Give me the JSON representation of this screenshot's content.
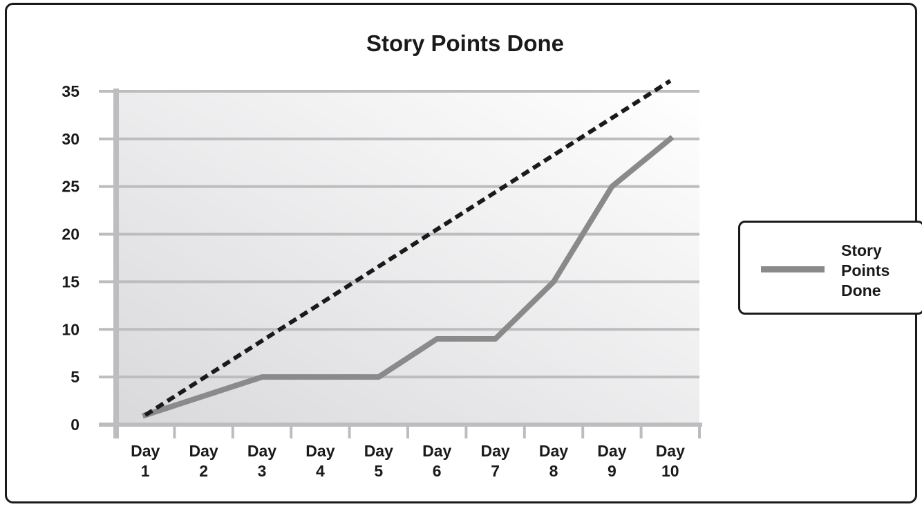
{
  "chart_data": {
    "type": "line",
    "title": "Story Points Done",
    "categories": [
      "Day 1",
      "Day 2",
      "Day 3",
      "Day 4",
      "Day 5",
      "Day 6",
      "Day 7",
      "Day 8",
      "Day 9",
      "Day 10"
    ],
    "category_lines": [
      [
        "Day",
        "1"
      ],
      [
        "Day",
        "2"
      ],
      [
        "Day",
        "3"
      ],
      [
        "Day",
        "4"
      ],
      [
        "Day",
        "5"
      ],
      [
        "Day",
        "6"
      ],
      [
        "Day",
        "7"
      ],
      [
        "Day",
        "8"
      ],
      [
        "Day",
        "9"
      ],
      [
        "Day",
        "10"
      ]
    ],
    "series": [
      {
        "name": "Story Points Done",
        "color": "#8a8a8a",
        "style": "solid",
        "values": [
          1,
          3,
          5,
          5,
          5,
          9,
          9,
          15,
          25,
          30
        ]
      },
      {
        "color": "#1a1a1a",
        "style": "dashed",
        "values": [
          1,
          4.9,
          8.8,
          12.7,
          16.6,
          20.5,
          24.4,
          28.3,
          32.2,
          36.1
        ]
      }
    ],
    "yticks": [
      0,
      5,
      10,
      15,
      20,
      25,
      30,
      35
    ],
    "ylim": [
      0,
      35
    ],
    "grid": true,
    "legend": {
      "position": "right",
      "label_lines": [
        "Story",
        "Points",
        "Done"
      ]
    }
  }
}
